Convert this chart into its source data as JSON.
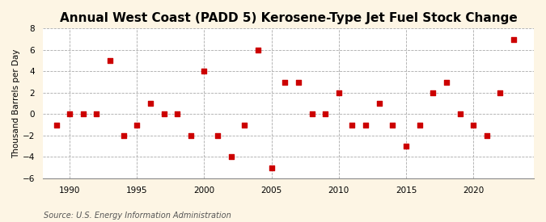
{
  "title": "Annual West Coast (PADD 5) Kerosene-Type Jet Fuel Stock Change",
  "ylabel": "Thousand Barrels per Day",
  "source": "Source: U.S. Energy Information Administration",
  "years": [
    1989,
    1990,
    1991,
    1992,
    1993,
    1994,
    1995,
    1996,
    1997,
    1998,
    1999,
    2000,
    2001,
    2002,
    2003,
    2004,
    2005,
    2006,
    2007,
    2008,
    2009,
    2010,
    2011,
    2012,
    2013,
    2014,
    2015,
    2016,
    2017,
    2018,
    2019,
    2020,
    2021,
    2022,
    2023
  ],
  "values": [
    -1,
    0,
    0,
    0,
    5,
    -2,
    -1,
    1,
    0,
    0,
    -2,
    4,
    -2,
    -4,
    -1,
    6,
    -5,
    3,
    3,
    0,
    0,
    2,
    -1,
    -1,
    1,
    -1,
    -3,
    -1,
    2,
    3,
    0,
    -1,
    -2,
    2,
    7
  ],
  "marker_color": "#cc0000",
  "marker_size": 18,
  "bg_color": "#fdf5e4",
  "plot_bg_color": "#ffffff",
  "grid_color": "#aaaaaa",
  "ylim": [
    -6,
    8
  ],
  "yticks": [
    -6,
    -4,
    -2,
    0,
    2,
    4,
    6,
    8
  ],
  "xlim": [
    1988.0,
    2024.5
  ],
  "xticks": [
    1990,
    1995,
    2000,
    2005,
    2010,
    2015,
    2020
  ],
  "title_fontsize": 11,
  "axis_fontsize": 7.5,
  "source_fontsize": 7
}
